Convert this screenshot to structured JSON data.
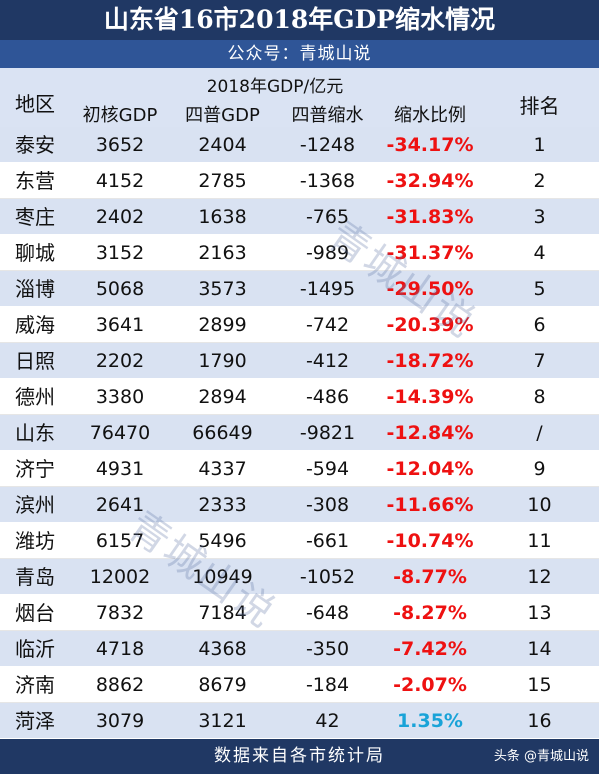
{
  "title": "山东省16市2018年GDP缩水情况",
  "subtitle": "公众号：青城山说",
  "header": {
    "unit": "2018年GDP/亿元",
    "region": "地区",
    "initial": "初核GDP",
    "census": "四普GDP",
    "shrink": "四普缩水",
    "ratio": "缩水比例",
    "rank": "排名"
  },
  "rows": [
    {
      "region": "泰安",
      "initial": "3652",
      "census": "2404",
      "shrink": "-1248",
      "ratio": "-34.17%",
      "rank": "1"
    },
    {
      "region": "东营",
      "initial": "4152",
      "census": "2785",
      "shrink": "-1368",
      "ratio": "-32.94%",
      "rank": "2"
    },
    {
      "region": "枣庄",
      "initial": "2402",
      "census": "1638",
      "shrink": "-765",
      "ratio": "-31.83%",
      "rank": "3"
    },
    {
      "region": "聊城",
      "initial": "3152",
      "census": "2163",
      "shrink": "-989",
      "ratio": "-31.37%",
      "rank": "4"
    },
    {
      "region": "淄博",
      "initial": "5068",
      "census": "3573",
      "shrink": "-1495",
      "ratio": "-29.50%",
      "rank": "5"
    },
    {
      "region": "威海",
      "initial": "3641",
      "census": "2899",
      "shrink": "-742",
      "ratio": "-20.39%",
      "rank": "6"
    },
    {
      "region": "日照",
      "initial": "2202",
      "census": "1790",
      "shrink": "-412",
      "ratio": "-18.72%",
      "rank": "7"
    },
    {
      "region": "德州",
      "initial": "3380",
      "census": "2894",
      "shrink": "-486",
      "ratio": "-14.39%",
      "rank": "8"
    },
    {
      "region": "山东",
      "initial": "76470",
      "census": "66649",
      "shrink": "-9821",
      "ratio": "-12.84%",
      "rank": "/"
    },
    {
      "region": "济宁",
      "initial": "4931",
      "census": "4337",
      "shrink": "-594",
      "ratio": "-12.04%",
      "rank": "9"
    },
    {
      "region": "滨州",
      "initial": "2641",
      "census": "2333",
      "shrink": "-308",
      "ratio": "-11.66%",
      "rank": "10"
    },
    {
      "region": "潍坊",
      "initial": "6157",
      "census": "5496",
      "shrink": "-661",
      "ratio": "-10.74%",
      "rank": "11"
    },
    {
      "region": "青岛",
      "initial": "12002",
      "census": "10949",
      "shrink": "-1052",
      "ratio": "-8.77%",
      "rank": "12"
    },
    {
      "region": "烟台",
      "initial": "7832",
      "census": "7184",
      "shrink": "-648",
      "ratio": "-8.27%",
      "rank": "13"
    },
    {
      "region": "临沂",
      "initial": "4718",
      "census": "4368",
      "shrink": "-350",
      "ratio": "-7.42%",
      "rank": "14"
    },
    {
      "region": "济南",
      "initial": "8862",
      "census": "8679",
      "shrink": "-184",
      "ratio": "-2.07%",
      "rank": "15"
    },
    {
      "region": "菏泽",
      "initial": "3079",
      "census": "3121",
      "shrink": "42",
      "ratio": "1.35%",
      "rank": "16"
    }
  ],
  "footer": {
    "source": "数据来自各市统计局",
    "brand": "头条 @青城山说"
  },
  "watermark": "青城山说",
  "colors": {
    "title_bg": "#203864",
    "subtitle_bg": "#2f5597",
    "stripe": "#d9e2f2",
    "negative": "#ee1111",
    "positive": "#19a3d8"
  }
}
